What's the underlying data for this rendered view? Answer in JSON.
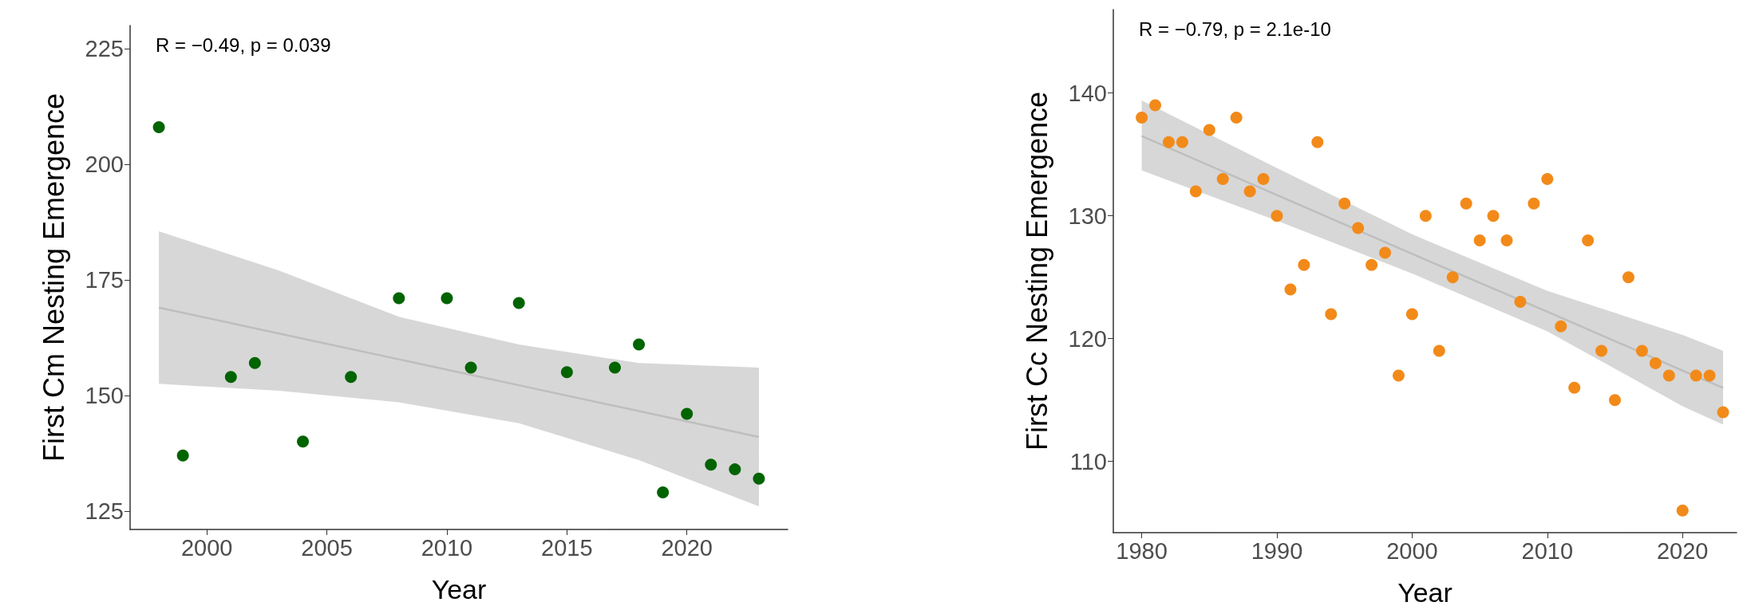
{
  "chart_data": [
    {
      "type": "scatter",
      "xlabel": "Year",
      "ylabel": "First Cm Nesting Emergence",
      "annotations": [
        "R = −0.49, p = 0.039"
      ],
      "xlim": [
        1996.8,
        2024.2
      ],
      "ylim": [
        121,
        230
      ],
      "xticks": [
        2000,
        2005,
        2010,
        2015,
        2020
      ],
      "yticks": [
        125,
        150,
        175,
        200,
        225
      ],
      "grid": false,
      "series": [
        {
          "marker": "circle",
          "color": "#006400",
          "x": [
            1998,
            1999,
            2001,
            2002,
            2004,
            2006,
            2008,
            2010,
            2011,
            2013,
            2015,
            2017,
            2018,
            2019,
            2020,
            2021,
            2022,
            2023
          ],
          "values": [
            208,
            137,
            154,
            157,
            140,
            154,
            171,
            171,
            156,
            170,
            155,
            156,
            161,
            129,
            146,
            135,
            134,
            132
          ]
        },
        {
          "type": "line",
          "marker": "none",
          "color": "#bebebe",
          "x": [
            1998,
            2003,
            2008,
            2013,
            2018,
            2023
          ],
          "values": [
            169,
            163.4,
            157.8,
            152.2,
            146.6,
            141
          ],
          "lower": [
            152.5,
            151,
            148.5,
            144,
            136,
            126
          ],
          "upper": [
            185.5,
            177,
            167,
            161,
            157,
            156
          ]
        }
      ]
    },
    {
      "type": "scatter",
      "xlabel": "Year",
      "ylabel": "First Cc Nesting Emergence",
      "annotations": [
        "R = −0.79, p = 2.1e-10"
      ],
      "xlim": [
        1977.9,
        2024
      ],
      "ylim": [
        104.2,
        146.8
      ],
      "xticks": [
        1980,
        1990,
        2000,
        2010,
        2020
      ],
      "yticks": [
        110,
        120,
        130,
        140
      ],
      "grid": false,
      "series": [
        {
          "marker": "circle",
          "color": "#f28a1a",
          "x": [
            1980,
            1981,
            1982,
            1983,
            1984,
            1985,
            1986,
            1987,
            1988,
            1989,
            1990,
            1991,
            1992,
            1993,
            1994,
            1995,
            1996,
            1997,
            1998,
            1999,
            2000,
            2001,
            2002,
            2003,
            2004,
            2005,
            2006,
            2007,
            2008,
            2009,
            2010,
            2011,
            2012,
            2013,
            2014,
            2015,
            2016,
            2017,
            2018,
            2019,
            2020,
            2021,
            2022,
            2023
          ],
          "values": [
            138,
            139,
            136,
            136,
            132,
            137,
            133,
            138,
            132,
            133,
            130,
            124,
            126,
            136,
            122,
            131,
            129,
            126,
            127,
            117,
            122,
            130,
            119,
            125,
            131,
            128,
            130,
            128,
            123,
            131,
            133,
            121,
            116,
            128,
            119,
            115,
            125,
            119,
            118,
            117,
            106,
            117,
            117,
            114
          ]
        },
        {
          "type": "line",
          "marker": "none",
          "color": "#bebebe",
          "x": [
            1980,
            1990,
            2000,
            2010,
            2020,
            2023
          ],
          "values": [
            136.5,
            131.7,
            126.9,
            122.2,
            117.4,
            116
          ],
          "lower": [
            133.7,
            129.6,
            125.3,
            120.6,
            114.5,
            113
          ],
          "upper": [
            139.4,
            133.9,
            128.5,
            123.9,
            120.3,
            119
          ]
        }
      ]
    }
  ]
}
